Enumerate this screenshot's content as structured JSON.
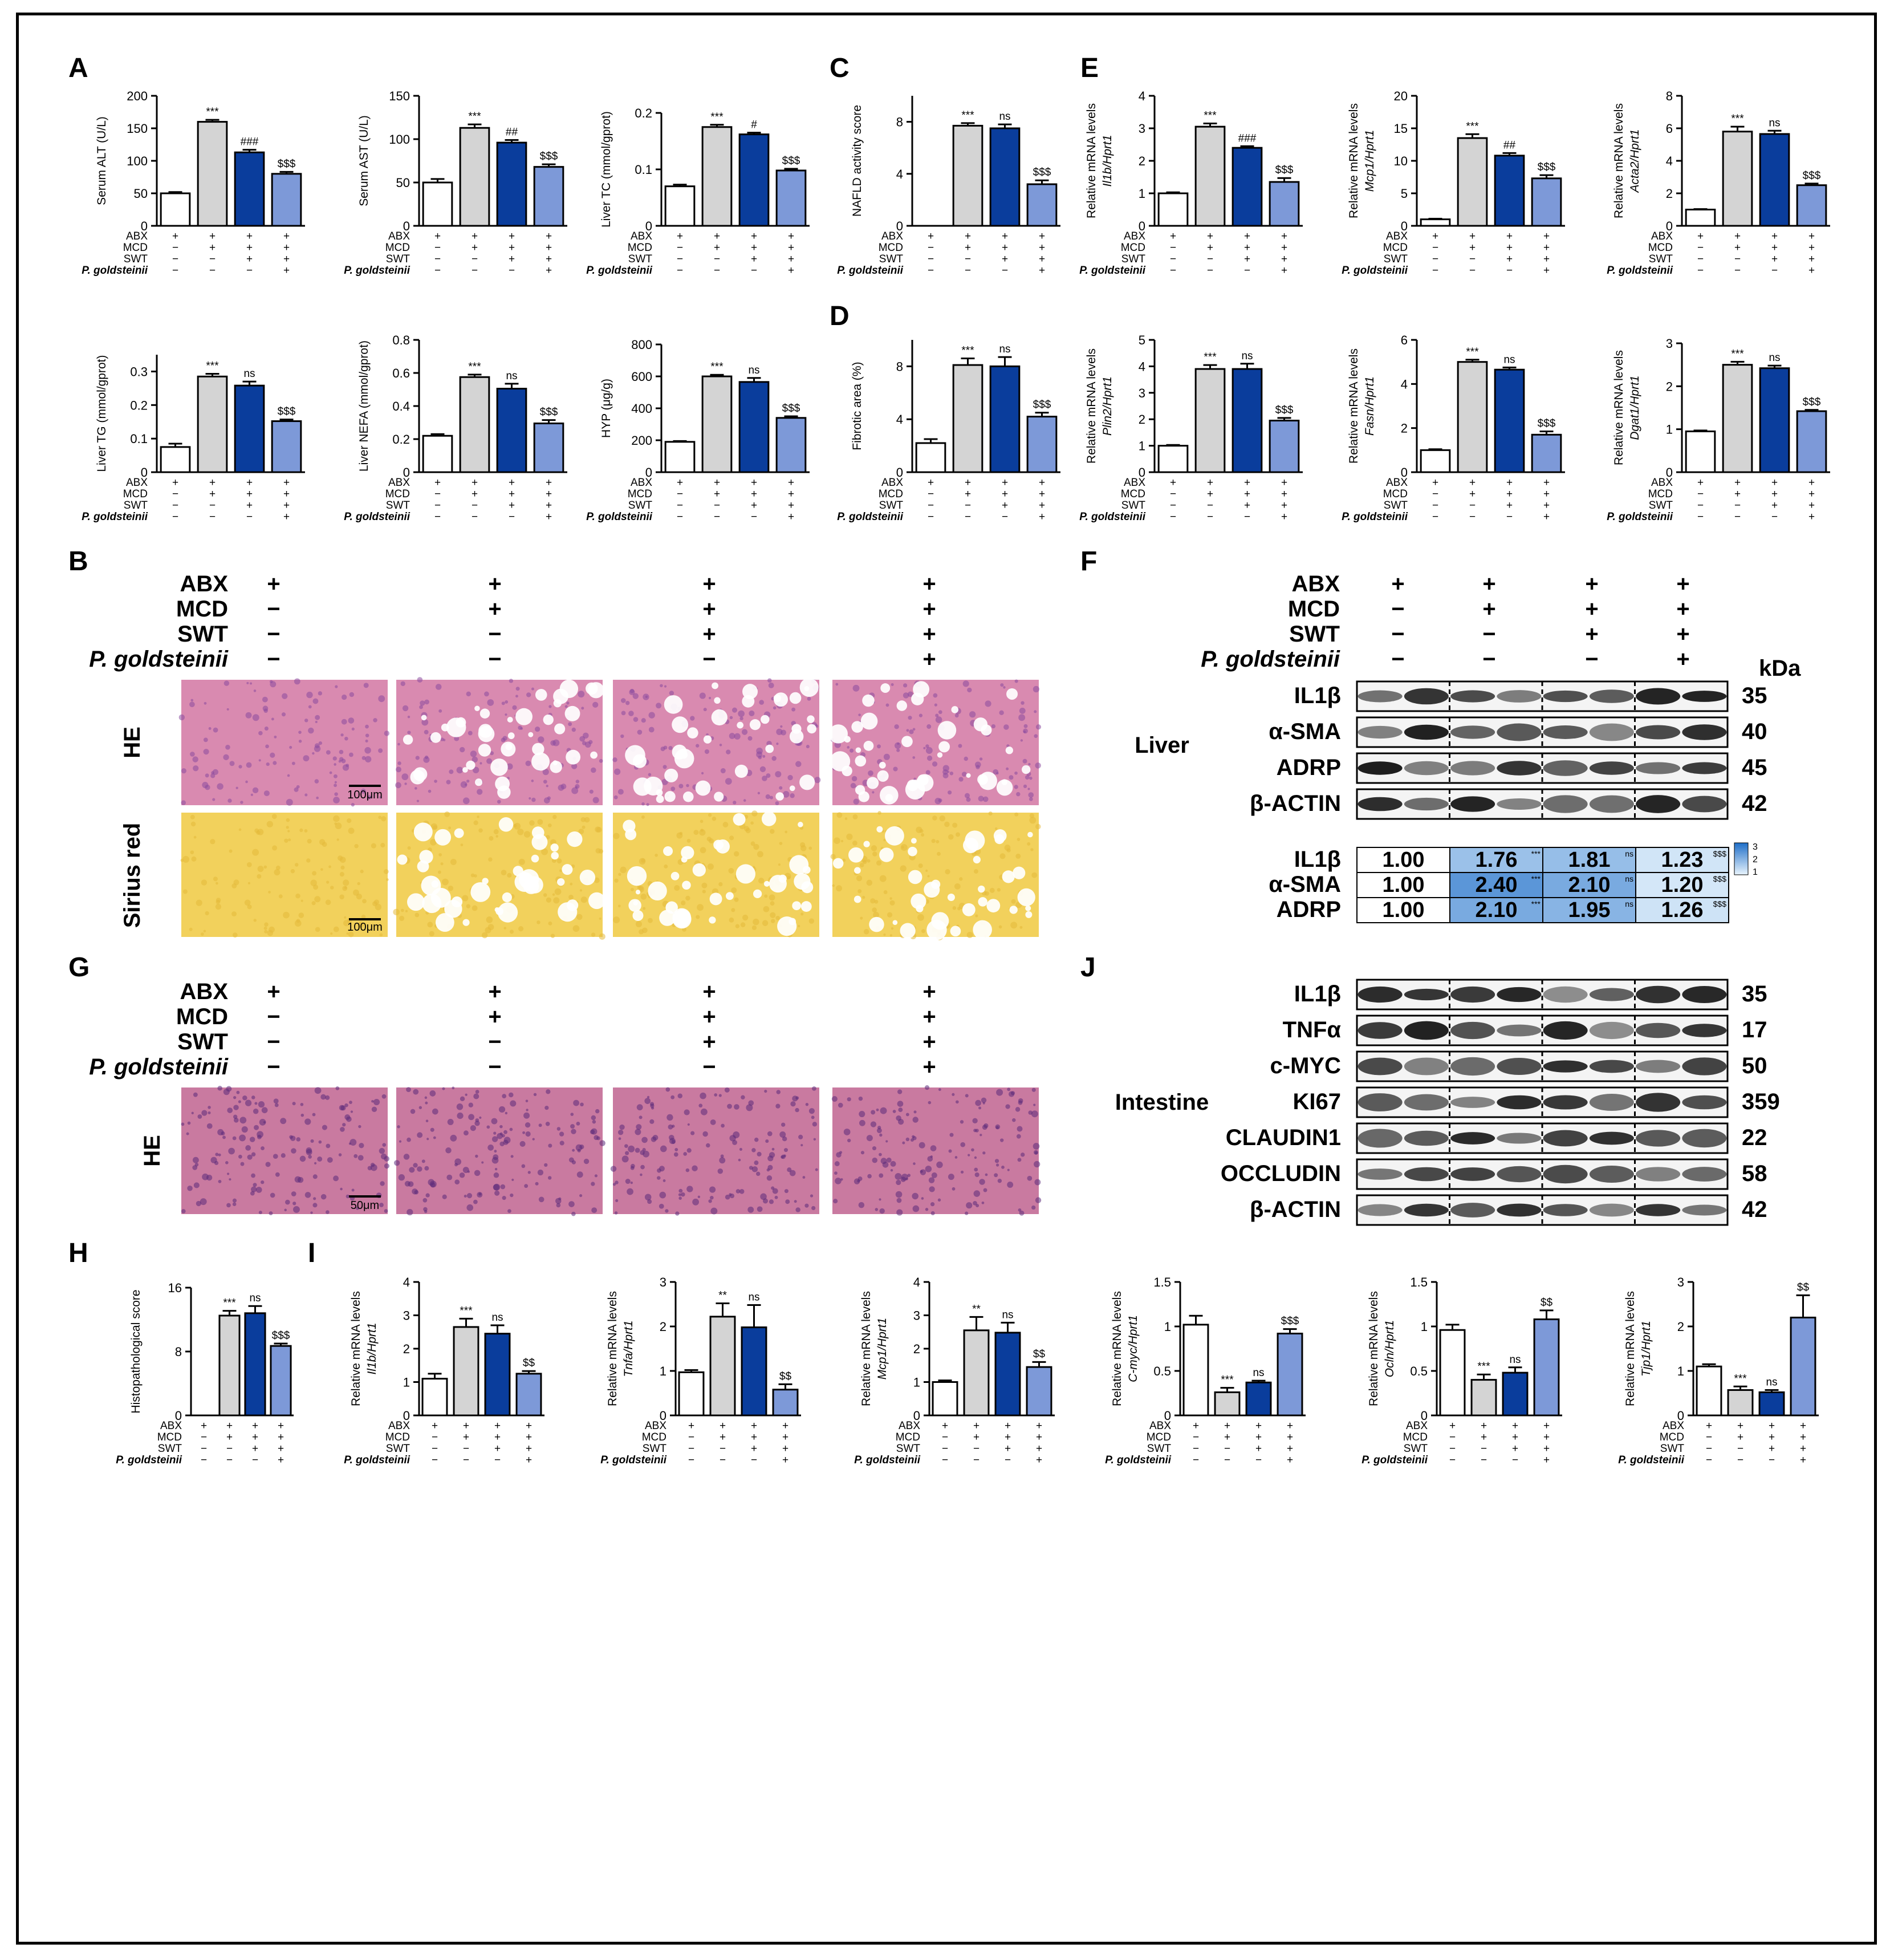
{
  "panel_letters": [
    "A",
    "B",
    "C",
    "D",
    "E",
    "F",
    "G",
    "H",
    "I",
    "J"
  ],
  "conditions": {
    "rows4": [
      "ABX",
      "MCD",
      "SWT",
      "P. goldsteinii"
    ],
    "signs": [
      [
        "+",
        "+",
        "+",
        "+"
      ],
      [
        "−",
        "+",
        "+",
        "+"
      ],
      [
        "−",
        "−",
        "+",
        "+"
      ],
      [
        "−",
        "−",
        "−",
        "+"
      ]
    ]
  },
  "colors": {
    "ctrl": "#ffffff",
    "mcd": "#d4d4d4",
    "swt": "#0a3d9c",
    "pg": "#7d99d8"
  },
  "chart_data": [
    {
      "type": "bar",
      "panel": "A",
      "ylabel": "Serum ALT (U/L)",
      "ylim": [
        0,
        200
      ],
      "ticks": [
        0,
        50,
        100,
        150,
        200
      ],
      "values": [
        50,
        160,
        113,
        80
      ],
      "errors": [
        2,
        3,
        4,
        3
      ],
      "sig": [
        "",
        "***",
        "###",
        "$$$"
      ]
    },
    {
      "type": "bar",
      "panel": "A",
      "ylabel": "Serum AST (U/L)",
      "ylim": [
        0,
        150
      ],
      "ticks": [
        0,
        50,
        100,
        150
      ],
      "values": [
        50,
        113,
        96,
        68
      ],
      "errors": [
        4,
        4,
        3,
        3
      ],
      "sig": [
        "",
        "***",
        "##",
        "$$$"
      ]
    },
    {
      "type": "bar",
      "panel": "A",
      "ylabel": "Liver TC (mmol/gprot)",
      "ylim": [
        0,
        0.2
      ],
      "ticks": [
        0.0,
        0.1,
        0.2
      ],
      "values": [
        0.07,
        0.175,
        0.162,
        0.098
      ],
      "errors": [
        0.003,
        0.004,
        0.003,
        0.003
      ],
      "sig": [
        "",
        "***",
        "#",
        "$$$"
      ]
    },
    {
      "type": "bar",
      "panel": "C",
      "ylabel": "NAFLD activity score",
      "ylim": [
        0,
        10
      ],
      "ticks": [
        0,
        4,
        8
      ],
      "values": [
        0,
        7.7,
        7.5,
        3.2
      ],
      "errors": [
        0,
        0.2,
        0.3,
        0.3
      ],
      "sig": [
        "",
        "***",
        "ns",
        "$$$"
      ]
    },
    {
      "type": "bar",
      "panel": "E",
      "ylabel": "Relative mRNA levels Il1b/Hprt1",
      "ylim": [
        0,
        4
      ],
      "ticks": [
        0,
        1,
        2,
        3,
        4
      ],
      "values": [
        1.0,
        3.05,
        2.4,
        1.35
      ],
      "errors": [
        0.03,
        0.1,
        0.05,
        0.12
      ],
      "sig": [
        "",
        "***",
        "###",
        "$$$"
      ]
    },
    {
      "type": "bar",
      "panel": "E",
      "ylabel": "Relative mRNA levels Mcp1/Hprt1",
      "ylim": [
        0,
        20
      ],
      "ticks": [
        0,
        5,
        10,
        15,
        20
      ],
      "values": [
        1.0,
        13.5,
        10.8,
        7.3
      ],
      "errors": [
        0.1,
        0.6,
        0.4,
        0.5
      ],
      "sig": [
        "",
        "***",
        "##",
        "$$$"
      ]
    },
    {
      "type": "bar",
      "panel": "E",
      "ylabel": "Relative mRNA levels Acta2/Hprt1",
      "ylim": [
        0,
        8
      ],
      "ticks": [
        0,
        2,
        4,
        6,
        8
      ],
      "values": [
        1.0,
        5.8,
        5.65,
        2.5
      ],
      "errors": [
        0.03,
        0.3,
        0.2,
        0.1
      ],
      "sig": [
        "",
        "***",
        "ns",
        "$$$"
      ]
    },
    {
      "type": "bar",
      "panel": "A",
      "ylabel": "Liver TG (mmol/gprot)",
      "ylim": [
        0,
        0.35
      ],
      "ticks": [
        0.0,
        0.1,
        0.2,
        0.3
      ],
      "values": [
        0.075,
        0.285,
        0.258,
        0.152
      ],
      "errors": [
        0.01,
        0.008,
        0.012,
        0.005
      ],
      "sig": [
        "",
        "***",
        "ns",
        "$$$"
      ]
    },
    {
      "type": "bar",
      "panel": "A",
      "ylabel": "Liver NEFA (mmol/gprot)",
      "ylim": [
        0,
        0.8
      ],
      "ticks": [
        0.0,
        0.2,
        0.4,
        0.6,
        0.8
      ],
      "values": [
        0.22,
        0.575,
        0.505,
        0.295
      ],
      "errors": [
        0.01,
        0.015,
        0.03,
        0.02
      ],
      "sig": [
        "",
        "***",
        "ns",
        "$$$"
      ]
    },
    {
      "type": "bar",
      "panel": "A",
      "ylabel": "HYP (μg/g)",
      "ylim": [
        0,
        800
      ],
      "ticks": [
        0,
        200,
        400,
        600,
        800
      ],
      "values": [
        190,
        600,
        565,
        340
      ],
      "errors": [
        5,
        10,
        25,
        10
      ],
      "sig": [
        "",
        "***",
        "ns",
        "$$$"
      ]
    },
    {
      "type": "bar",
      "panel": "D",
      "ylabel": "Fibrotic area (%)",
      "ylim": [
        0,
        10
      ],
      "ticks": [
        0,
        4,
        8
      ],
      "values": [
        2.2,
        8.1,
        8.0,
        4.2
      ],
      "errors": [
        0.3,
        0.5,
        0.7,
        0.3
      ],
      "sig": [
        "",
        "***",
        "ns",
        "$$$"
      ]
    },
    {
      "type": "bar",
      "panel": "E",
      "ylabel": "Relative mRNA levels Plin2/Hprt1",
      "ylim": [
        0,
        5
      ],
      "ticks": [
        0,
        1,
        2,
        3,
        4,
        5
      ],
      "values": [
        1.0,
        3.9,
        3.9,
        1.95
      ],
      "errors": [
        0.03,
        0.15,
        0.2,
        0.1
      ],
      "sig": [
        "",
        "***",
        "ns",
        "$$$"
      ]
    },
    {
      "type": "bar",
      "panel": "E",
      "ylabel": "Relative mRNA levels Fasn/Hprt1",
      "ylim": [
        0,
        6
      ],
      "ticks": [
        0,
        2,
        4,
        6
      ],
      "values": [
        1.0,
        5.0,
        4.65,
        1.7
      ],
      "errors": [
        0.04,
        0.1,
        0.1,
        0.15
      ],
      "sig": [
        "",
        "***",
        "ns",
        "$$$"
      ]
    },
    {
      "type": "bar",
      "panel": "E",
      "ylabel": "Relative mRNA levels Dgat1/Hprt1",
      "ylim": [
        0,
        3
      ],
      "ticks": [
        0,
        1,
        2,
        3
      ],
      "values": [
        0.95,
        2.5,
        2.42,
        1.42
      ],
      "errors": [
        0.02,
        0.07,
        0.06,
        0.03
      ],
      "sig": [
        "",
        "***",
        "ns",
        "$$$"
      ]
    },
    {
      "type": "bar",
      "panel": "H",
      "ylabel": "Histopathological score",
      "ylim": [
        0,
        16
      ],
      "ticks": [
        0,
        8,
        16
      ],
      "values": [
        0,
        12.5,
        12.8,
        8.7
      ],
      "errors": [
        0,
        0.6,
        0.9,
        0.3
      ],
      "sig": [
        "",
        "***",
        "ns",
        "$$$"
      ]
    },
    {
      "type": "bar",
      "panel": "I",
      "ylabel": "Relative mRNA levels Il1b/Hprt1",
      "ylim": [
        0,
        4
      ],
      "ticks": [
        0,
        1,
        2,
        3,
        4
      ],
      "values": [
        1.1,
        2.65,
        2.45,
        1.25
      ],
      "errors": [
        0.15,
        0.25,
        0.25,
        0.08
      ],
      "sig": [
        "",
        "***",
        "ns",
        "$$"
      ]
    },
    {
      "type": "bar",
      "panel": "I",
      "ylabel": "Relative mRNA levels Tnfa/Hprt1",
      "ylim": [
        0,
        3
      ],
      "ticks": [
        0,
        1,
        2,
        3
      ],
      "values": [
        0.97,
        2.22,
        1.98,
        0.58
      ],
      "errors": [
        0.05,
        0.3,
        0.5,
        0.12
      ],
      "sig": [
        "",
        "**",
        "ns",
        "$$"
      ]
    },
    {
      "type": "bar",
      "panel": "I",
      "ylabel": "Relative mRNA levels Mcp1/Hprt1",
      "ylim": [
        0,
        4
      ],
      "ticks": [
        0,
        1,
        2,
        3,
        4
      ],
      "values": [
        1.0,
        2.55,
        2.48,
        1.45
      ],
      "errors": [
        0.05,
        0.4,
        0.3,
        0.15
      ],
      "sig": [
        "",
        "**",
        "ns",
        "$$"
      ]
    },
    {
      "type": "bar",
      "panel": "I",
      "ylabel": "Relative mRNA levels C-myc/Hprt1",
      "ylim": [
        0,
        1.5
      ],
      "ticks": [
        0.0,
        0.5,
        1.0,
        1.5
      ],
      "values": [
        1.02,
        0.26,
        0.37,
        0.92
      ],
      "errors": [
        0.1,
        0.05,
        0.02,
        0.05
      ],
      "sig": [
        "",
        "***",
        "ns",
        "$$$"
      ]
    },
    {
      "type": "bar",
      "panel": "I",
      "ylabel": "Relative mRNA levels Ocln/Hprt1",
      "ylim": [
        0,
        1.5
      ],
      "ticks": [
        0.0,
        0.5,
        1.0,
        1.5
      ],
      "values": [
        0.96,
        0.4,
        0.48,
        1.08
      ],
      "errors": [
        0.06,
        0.06,
        0.06,
        0.1
      ],
      "sig": [
        "",
        "***",
        "ns",
        "$$"
      ]
    },
    {
      "type": "bar",
      "panel": "I",
      "ylabel": "Relative mRNA levels Tjp1/Hprt1",
      "ylim": [
        0,
        3
      ],
      "ticks": [
        0,
        1,
        2,
        3
      ],
      "values": [
        1.1,
        0.57,
        0.52,
        2.2
      ],
      "errors": [
        0.05,
        0.08,
        0.05,
        0.5
      ],
      "sig": [
        "",
        "***",
        "ns",
        "$$"
      ]
    }
  ],
  "histology": {
    "row_labels_b": [
      "HE",
      "Sirius red"
    ],
    "row_labels_g": [
      "HE"
    ],
    "scale_b": "100μm",
    "scale_g": "50μm"
  },
  "western_f": {
    "tissue": "Liver",
    "kda_header": "kDa",
    "bands": [
      {
        "name": "IL1β",
        "kda": "35"
      },
      {
        "name": "α-SMA",
        "kda": "40"
      },
      {
        "name": "ADRP",
        "kda": "45"
      },
      {
        "name": "β-ACTIN",
        "kda": "42"
      }
    ],
    "quant": {
      "rows": [
        {
          "name": "IL1β",
          "values": [
            "1.00",
            "1.76",
            "1.81",
            "1.23"
          ],
          "sig": [
            "",
            "***",
            "ns",
            "$$$"
          ]
        },
        {
          "name": "α-SMA",
          "values": [
            "1.00",
            "2.40",
            "2.10",
            "1.20"
          ],
          "sig": [
            "",
            "***",
            "ns",
            "$$$"
          ]
        },
        {
          "name": "ADRP",
          "values": [
            "1.00",
            "2.10",
            "1.95",
            "1.26"
          ],
          "sig": [
            "",
            "***",
            "ns",
            "$$$"
          ]
        }
      ],
      "scale_labels": [
        "3",
        "2",
        "1"
      ]
    }
  },
  "western_j": {
    "tissue": "Intestine",
    "bands": [
      {
        "name": "IL1β",
        "kda": "35"
      },
      {
        "name": "TNFα",
        "kda": "17"
      },
      {
        "name": "c-MYC",
        "kda": "50"
      },
      {
        "name": "KI67",
        "kda": "359"
      },
      {
        "name": "CLAUDIN1",
        "kda": "22"
      },
      {
        "name": "OCCLUDIN",
        "kda": "58"
      },
      {
        "name": "β-ACTIN",
        "kda": "42"
      }
    ]
  }
}
